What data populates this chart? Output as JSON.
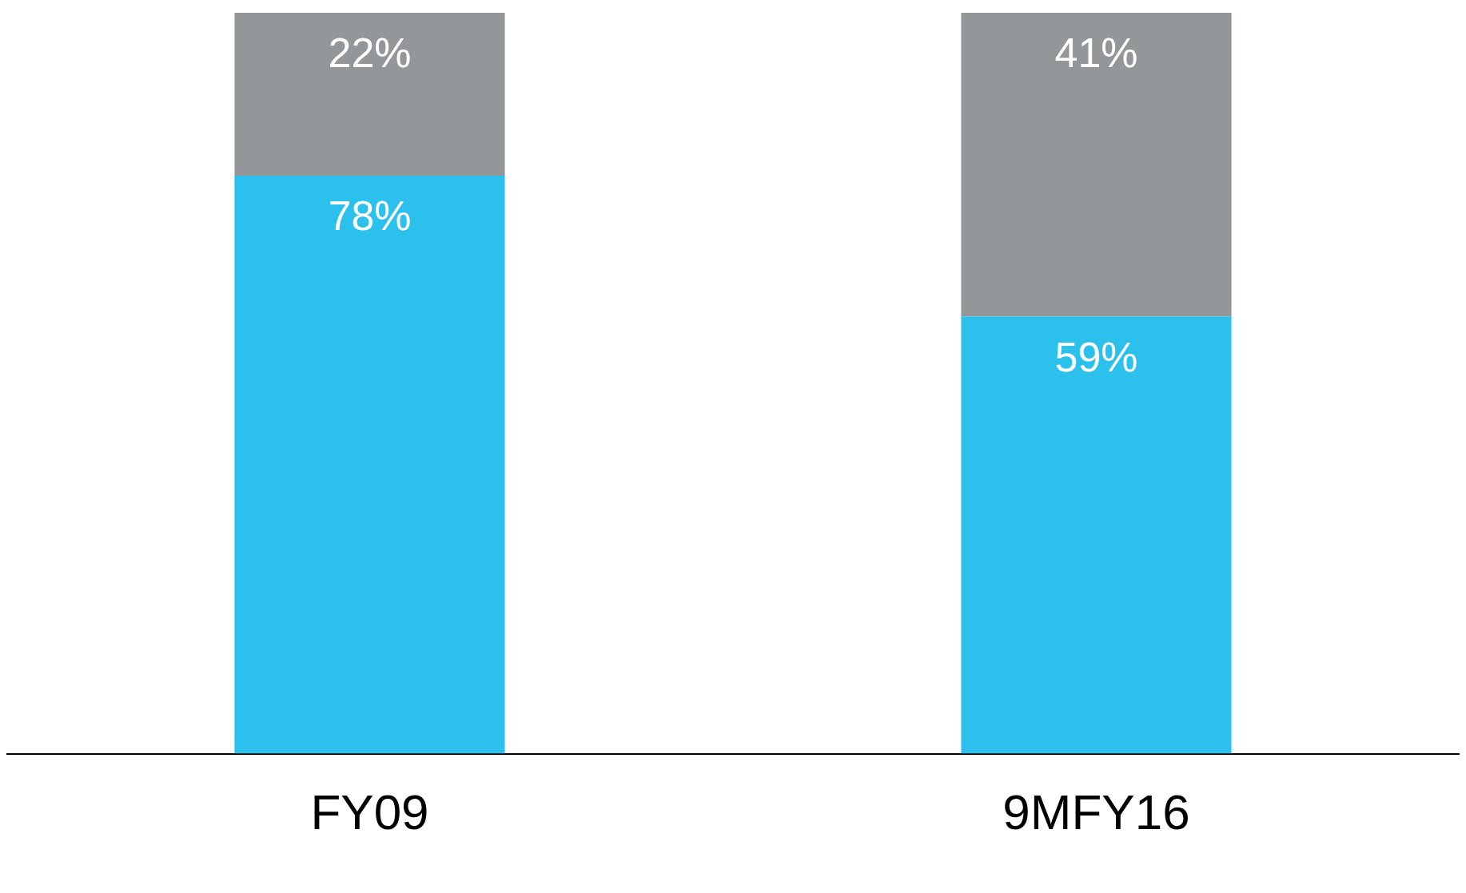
{
  "chart_data": {
    "type": "bar",
    "stacked": true,
    "legend": false,
    "categories": [
      "FY09",
      "9MFY16"
    ],
    "series": [
      {
        "color": "#2cc0ec",
        "values": [
          78,
          59
        ],
        "value_labels": [
          "78%",
          "59%"
        ]
      },
      {
        "color": "#93979a",
        "values": [
          22,
          41
        ],
        "value_labels": [
          "22%",
          "41%"
        ]
      }
    ]
  }
}
